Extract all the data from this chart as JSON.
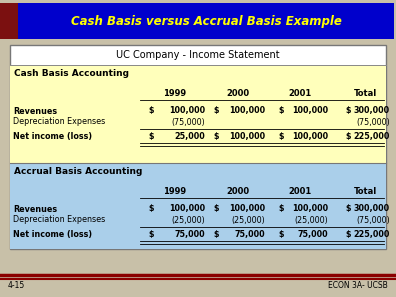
{
  "title": "Cash Basis versus Accrual Basis Example",
  "title_bg": "#0000CC",
  "title_color": "#FFFF00",
  "slide_bg": "#C8C0A8",
  "table_title": "UC Company - Income Statement",
  "section1_header": "Cash Basis Accounting",
  "section1_bg": "#FFFFBB",
  "section2_header": "Accrual Basis Accounting",
  "section2_bg": "#AACFEA",
  "years": [
    "1999",
    "2000",
    "2001",
    "Total"
  ],
  "cash_rows": [
    [
      "Revenues",
      "$",
      "100,000",
      "$",
      "100,000",
      "$",
      "100,000",
      "$",
      "300,000"
    ],
    [
      "Depreciation Expenses",
      "",
      "(75,000)",
      "",
      "",
      "",
      "",
      "",
      "(75,000)"
    ],
    [
      "Net income (loss)",
      "$",
      "25,000",
      "$",
      "100,000",
      "$",
      "100,000",
      "$",
      "225,000"
    ]
  ],
  "accrual_rows": [
    [
      "Revenues",
      "$",
      "100,000",
      "$",
      "100,000",
      "$",
      "100,000",
      "$",
      "300,000"
    ],
    [
      "Depreciation Expenses",
      "",
      "(25,000)",
      "",
      "(25,000)",
      "",
      "(25,000)",
      "",
      "(75,000)"
    ],
    [
      "Net income (loss)",
      "$",
      "75,000",
      "$",
      "75,000",
      "$",
      "75,000",
      "$",
      "225,000"
    ]
  ],
  "footer_left": "4-15",
  "footer_right": "ECON 3A- UCSB",
  "footer_line_color": "#8B0000",
  "dark_red_bg": "#7B1010",
  "title_fontsize": 8.5,
  "label_fontsize": 5.8,
  "data_fontsize": 5.8,
  "year_fontsize": 6.0,
  "section_fontsize": 6.5,
  "table_title_fontsize": 7.0
}
